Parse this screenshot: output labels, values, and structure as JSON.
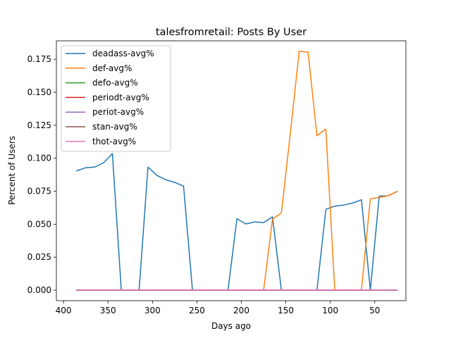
{
  "chart_data": {
    "type": "line",
    "title": "talesfromretail: Posts By User",
    "xlabel": "Days ago",
    "ylabel": "Percent of Users",
    "xlim": [
      408,
      15
    ],
    "ylim": [
      -0.008,
      0.189
    ],
    "xticks": [
      400,
      350,
      300,
      250,
      200,
      150,
      100,
      50
    ],
    "yticks": [
      0.0,
      0.025,
      0.05,
      0.075,
      0.1,
      0.125,
      0.15,
      0.175
    ],
    "ytick_labels": [
      "0.000",
      "0.025",
      "0.050",
      "0.075",
      "0.100",
      "0.125",
      "0.150",
      "0.175"
    ],
    "grid": false,
    "legend_position": "upper-left",
    "x": [
      385,
      375,
      365,
      355,
      345,
      335,
      325,
      315,
      305,
      295,
      285,
      275,
      265,
      255,
      245,
      235,
      225,
      215,
      205,
      195,
      185,
      175,
      165,
      155,
      145,
      135,
      125,
      115,
      105,
      95,
      85,
      75,
      65,
      55,
      45,
      35,
      25
    ],
    "series": [
      {
        "name": "deadass-avg%",
        "color": "#1f77b4",
        "values": [
          0.0905,
          0.0928,
          0.0933,
          0.0965,
          0.1035,
          0.0,
          0.0,
          0.0,
          0.0933,
          0.087,
          0.0837,
          0.0817,
          0.0789,
          0.0,
          0.0,
          0.0,
          0.0,
          0.0,
          0.0542,
          0.0502,
          0.0517,
          0.0512,
          0.0555,
          0.0,
          0.0,
          0.0,
          0.0,
          0.0,
          0.0613,
          0.0637,
          0.0645,
          0.066,
          0.0685,
          0.0,
          0.0713,
          0.0715,
          0.0748
        ]
      },
      {
        "name": "def-avg%",
        "color": "#ff7f0e",
        "values": [
          0.0,
          0.0,
          0.0,
          0.0,
          0.0,
          0.0,
          0.0,
          0.0,
          0.0,
          0.0,
          0.0,
          0.0,
          0.0,
          0.0,
          0.0,
          0.0,
          0.0,
          0.0,
          0.0,
          0.0,
          0.0,
          0.0,
          0.0538,
          0.0585,
          0.1185,
          0.181,
          0.1805,
          0.117,
          0.1222,
          0.0,
          0.0,
          0.0,
          0.0,
          0.0693,
          0.0703,
          0.0715,
          0.0748
        ]
      },
      {
        "name": "defo-avg%",
        "color": "#2ca02c",
        "values": [
          0,
          0,
          0,
          0,
          0,
          0,
          0,
          0,
          0,
          0,
          0,
          0,
          0,
          0,
          0,
          0,
          0,
          0,
          0,
          0,
          0,
          0,
          0,
          0,
          0,
          0,
          0,
          0,
          0,
          0,
          0,
          0,
          0,
          0,
          0,
          0,
          0
        ]
      },
      {
        "name": "periodt-avg%",
        "color": "#d62728",
        "values": [
          0,
          0,
          0,
          0,
          0,
          0,
          0,
          0,
          0,
          0,
          0,
          0,
          0,
          0,
          0,
          0,
          0,
          0,
          0,
          0,
          0,
          0,
          0,
          0,
          0,
          0,
          0,
          0,
          0,
          0,
          0,
          0,
          0,
          0,
          0,
          0,
          0
        ]
      },
      {
        "name": "periot-avg%",
        "color": "#9467bd",
        "values": [
          0,
          0,
          0,
          0,
          0,
          0,
          0,
          0,
          0,
          0,
          0,
          0,
          0,
          0,
          0,
          0,
          0,
          0,
          0,
          0,
          0,
          0,
          0,
          0,
          0,
          0,
          0,
          0,
          0,
          0,
          0,
          0,
          0,
          0,
          0,
          0,
          0
        ]
      },
      {
        "name": "stan-avg%",
        "color": "#8c564b",
        "values": [
          0,
          0,
          0,
          0,
          0,
          0,
          0,
          0,
          0,
          0,
          0,
          0,
          0,
          0,
          0,
          0,
          0,
          0,
          0,
          0,
          0,
          0,
          0,
          0,
          0,
          0,
          0,
          0,
          0,
          0,
          0,
          0,
          0,
          0,
          0,
          0,
          0
        ]
      },
      {
        "name": "thot-avg%",
        "color": "#e377c2",
        "values": [
          0,
          0,
          0,
          0,
          0,
          0,
          0,
          0,
          0,
          0,
          0,
          0,
          0,
          0,
          0,
          0,
          0,
          0,
          0,
          0,
          0,
          0,
          0,
          0,
          0,
          0,
          0,
          0,
          0,
          0,
          0,
          0,
          0,
          0,
          0,
          0,
          0
        ]
      }
    ]
  }
}
